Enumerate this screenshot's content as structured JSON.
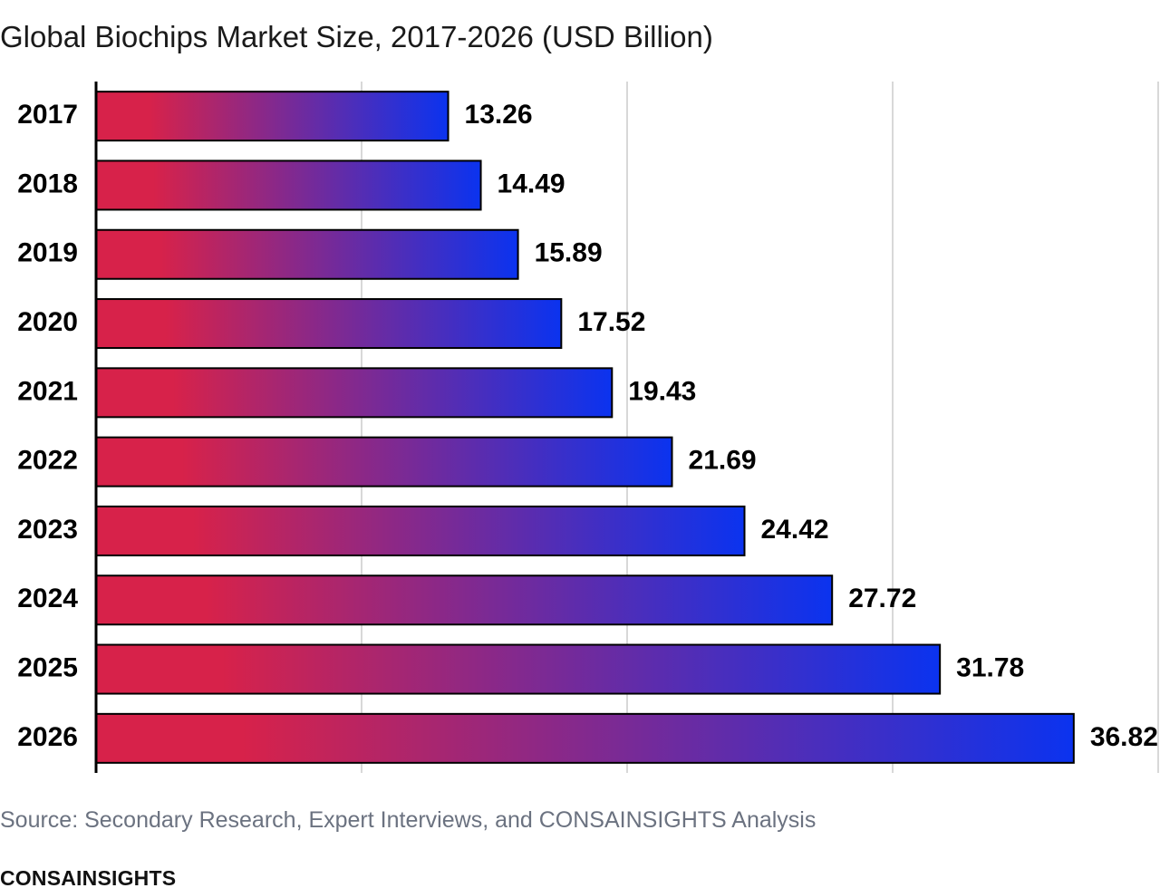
{
  "chart_data": {
    "type": "bar",
    "orientation": "horizontal",
    "title": "Global Biochips Market Size, 2017-2026 (USD Billion)",
    "categories": [
      "2017",
      "2018",
      "2019",
      "2020",
      "2021",
      "2022",
      "2023",
      "2024",
      "2025",
      "2026"
    ],
    "values": [
      13.26,
      14.49,
      15.89,
      17.52,
      19.43,
      21.69,
      24.42,
      27.72,
      31.78,
      36.82
    ],
    "data_labels": [
      "13.26",
      "14.49",
      "15.89",
      "17.52",
      "19.43",
      "21.69",
      "24.42",
      "27.72",
      "31.78",
      "36.82"
    ],
    "xlim": [
      0,
      40
    ],
    "grid": true,
    "legend": "none",
    "colors": {
      "gradient_start": "#d7224a",
      "gradient_end": "#0b33ef",
      "bar_outline": "#000000",
      "grid": "#cccccc"
    }
  },
  "footer": {
    "source": "Source: Secondary Research, Expert Interviews, and CONSAINSIGHTS Analysis",
    "brand": "CONSAINSIGHTS"
  }
}
